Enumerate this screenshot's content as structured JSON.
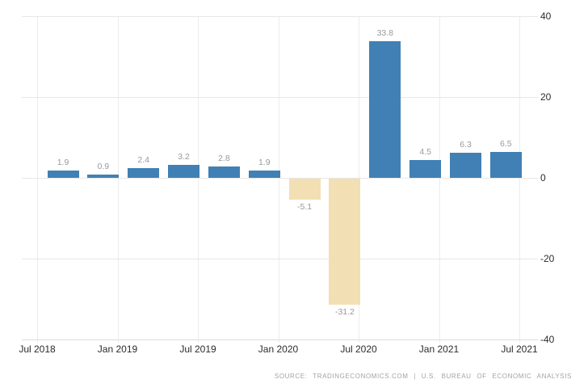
{
  "chart_data": {
    "type": "bar",
    "title": "",
    "xlabel": "",
    "ylabel": "",
    "categories": [
      "Q3 2018",
      "Q4 2018",
      "Q1 2019",
      "Q2 2019",
      "Q3 2019",
      "Q4 2019",
      "Q1 2020",
      "Q2 2020",
      "Q3 2020",
      "Q4 2020",
      "Q1 2021",
      "Q2 2021"
    ],
    "values": [
      1.9,
      0.9,
      2.4,
      3.2,
      2.8,
      1.9,
      -5.1,
      -31.2,
      33.8,
      4.5,
      6.3,
      6.5
    ],
    "value_labels": [
      "1.9",
      "0.9",
      "2.4",
      "3.2",
      "2.8",
      "1.9",
      "-5.1",
      "-31.2",
      "33.8",
      "4.5",
      "6.3",
      "6.5"
    ],
    "x_tick_labels": [
      "Jul 2018",
      "Jan 2019",
      "Jul 2019",
      "Jan 2020",
      "Jul 2020",
      "Jan 2021",
      "Jul 2021"
    ],
    "y_tick_labels": [
      "40",
      "20",
      "0",
      "-20",
      "-40"
    ],
    "y_ticks": [
      40,
      20,
      0,
      -20,
      -40
    ],
    "ylim": [
      -40,
      40
    ],
    "grid": "on",
    "legend": "none",
    "colors": {
      "positive_bar": "#4180b4",
      "negative_bar": "#f2dfb3",
      "value_label": "#999999",
      "axis_label": "#2b2b2b",
      "gridline": "#e7e7e7"
    }
  },
  "footer": {
    "source_note": "SOURCE: TRADINGECONOMICS.COM | U.S. BUREAU OF ECONOMIC ANALYSIS"
  }
}
